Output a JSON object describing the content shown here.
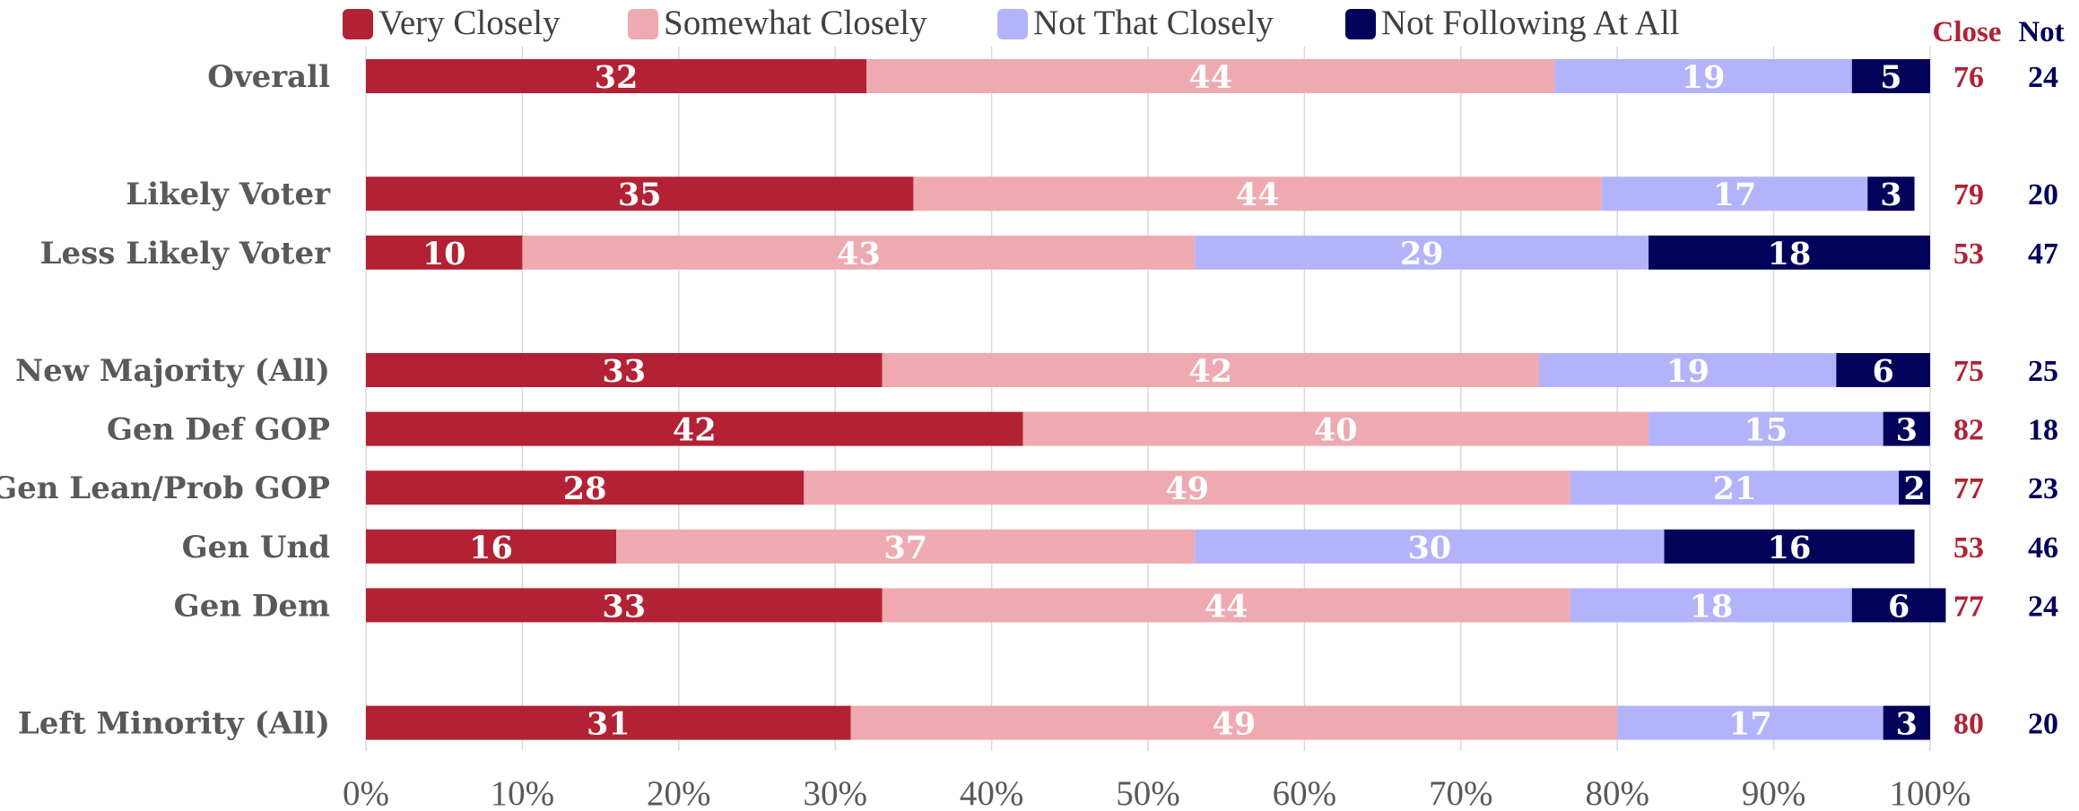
{
  "chart_data": {
    "type": "bar",
    "orientation": "horizontal",
    "stacked": true,
    "title": "",
    "xlabel": "",
    "ylabel": "",
    "xlim": [
      0,
      100
    ],
    "x_ticks": [
      "0%",
      "10%",
      "20%",
      "30%",
      "40%",
      "50%",
      "60%",
      "70%",
      "80%",
      "90%",
      "100%"
    ],
    "grid": "vertical",
    "legend_position": "top",
    "series": [
      {
        "name": "Very Closely",
        "color": "#b22234",
        "label_color": "#ffffff"
      },
      {
        "name": "Somewhat Closely",
        "color": "#eeaab0",
        "label_color": "#ffffff"
      },
      {
        "name": "Not That Closely",
        "color": "#b3b3fb",
        "label_color": "#ffffff"
      },
      {
        "name": "Not Following At All",
        "color": "#02025a",
        "label_color": "#ffffff"
      }
    ],
    "side_columns": [
      {
        "header": "Close",
        "color": "#b22234"
      },
      {
        "header": "Not",
        "color": "#02025a"
      }
    ],
    "rows": [
      {
        "label": "Overall",
        "values": [
          32,
          44,
          19,
          5
        ],
        "close": 76,
        "not": 24
      },
      {
        "label": "",
        "gap": true
      },
      {
        "label": "Likely Voter",
        "values": [
          35,
          44,
          17,
          3
        ],
        "close": 79,
        "not": 20
      },
      {
        "label": "Less Likely Voter",
        "values": [
          10,
          43,
          29,
          18
        ],
        "close": 53,
        "not": 47
      },
      {
        "label": "",
        "gap": true
      },
      {
        "label": "New Majority (All)",
        "values": [
          33,
          42,
          19,
          6
        ],
        "close": 75,
        "not": 25
      },
      {
        "label": "Gen Def GOP",
        "values": [
          42,
          40,
          15,
          3
        ],
        "close": 82,
        "not": 18
      },
      {
        "label": "Gen Lean/Prob GOP",
        "values": [
          28,
          49,
          21,
          2
        ],
        "close": 77,
        "not": 23
      },
      {
        "label": "Gen Und",
        "values": [
          16,
          37,
          30,
          16
        ],
        "close": 53,
        "not": 46
      },
      {
        "label": "Gen Dem",
        "values": [
          33,
          44,
          18,
          6
        ],
        "close": 77,
        "not": 24
      },
      {
        "label": "",
        "gap": true
      },
      {
        "label": "Left Minority (All)",
        "values": [
          31,
          49,
          17,
          3
        ],
        "close": 80,
        "not": 20
      }
    ]
  }
}
